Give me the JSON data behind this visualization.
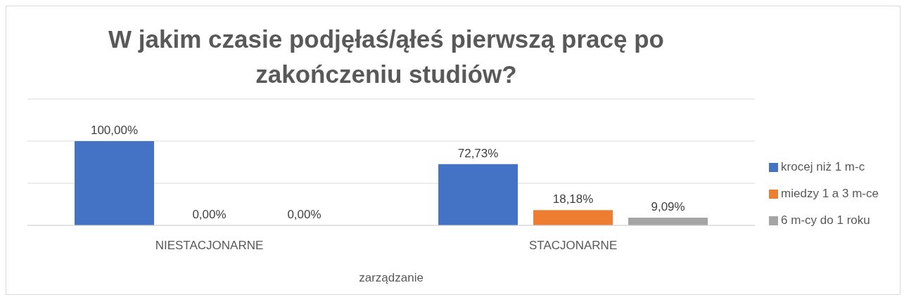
{
  "chart_data": {
    "type": "bar",
    "title": "W jakim czasie podjęłaś/ąłeś pierwszą pracę po zakończeniu studiów?",
    "xlabel": "zarządzanie",
    "categories": [
      "NIESTACJONARNE",
      "STACJONARNE"
    ],
    "series": [
      {
        "name": "krocej niż 1 m-c",
        "color": "#4472c4",
        "values": [
          100,
          72.73
        ],
        "value_labels": [
          "100,00%",
          "72,73%"
        ]
      },
      {
        "name": "miedzy 1 a 3 m-ce",
        "color": "#ed7d31",
        "values": [
          0,
          18.18
        ],
        "value_labels": [
          "0,00%",
          "18,18%"
        ]
      },
      {
        "name": "6 m-cy do 1 roku",
        "color": "#a5a5a5",
        "values": [
          0,
          9.09
        ],
        "value_labels": [
          "0,00%",
          "9,09%"
        ]
      }
    ],
    "ylim": [
      0,
      150
    ],
    "yticks": [
      {
        "value": 0,
        "label": null
      },
      {
        "value": 50,
        "label": null
      },
      {
        "value": 100,
        "label": null
      },
      {
        "value": 150,
        "label": null
      }
    ],
    "tick_labels": "x",
    "grid": "y",
    "legend": "right"
  }
}
